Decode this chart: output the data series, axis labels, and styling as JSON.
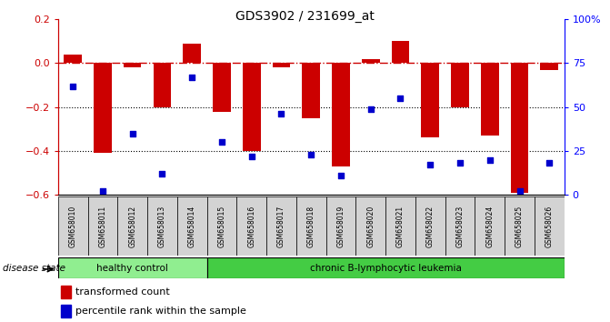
{
  "title": "GDS3902 / 231699_at",
  "samples": [
    "GSM658010",
    "GSM658011",
    "GSM658012",
    "GSM658013",
    "GSM658014",
    "GSM658015",
    "GSM658016",
    "GSM658017",
    "GSM658018",
    "GSM658019",
    "GSM658020",
    "GSM658021",
    "GSM658022",
    "GSM658023",
    "GSM658024",
    "GSM658025",
    "GSM658026"
  ],
  "bar_values": [
    0.04,
    -0.41,
    -0.02,
    -0.2,
    0.09,
    -0.22,
    -0.4,
    -0.02,
    -0.25,
    -0.47,
    0.02,
    0.1,
    -0.34,
    -0.2,
    -0.33,
    -0.59,
    -0.03
  ],
  "dot_values": [
    0.62,
    0.02,
    0.35,
    0.12,
    0.67,
    0.3,
    0.22,
    0.46,
    0.23,
    0.11,
    0.49,
    0.55,
    0.17,
    0.18,
    0.2,
    0.02,
    0.18
  ],
  "healthy_count": 5,
  "bar_color": "#cc0000",
  "dot_color": "#0000cc",
  "ref_line_color": "#cc0000",
  "grid_color": "#000000",
  "healthy_color": "#90ee90",
  "leukemia_color": "#44cc44",
  "ylim_left": [
    -0.6,
    0.2
  ],
  "yticks_left": [
    -0.6,
    -0.4,
    -0.2,
    0.0,
    0.2
  ],
  "ylim_right": [
    0,
    100
  ],
  "yticks_right": [
    0,
    25,
    50,
    75,
    100
  ],
  "ylabel_right_labels": [
    "0",
    "25",
    "50",
    "75",
    "100%"
  ],
  "legend_bar_label": "transformed count",
  "legend_dot_label": "percentile rank within the sample",
  "disease_state_label": "disease state",
  "healthy_label": "healthy control",
  "leukemia_label": "chronic B-lymphocytic leukemia"
}
